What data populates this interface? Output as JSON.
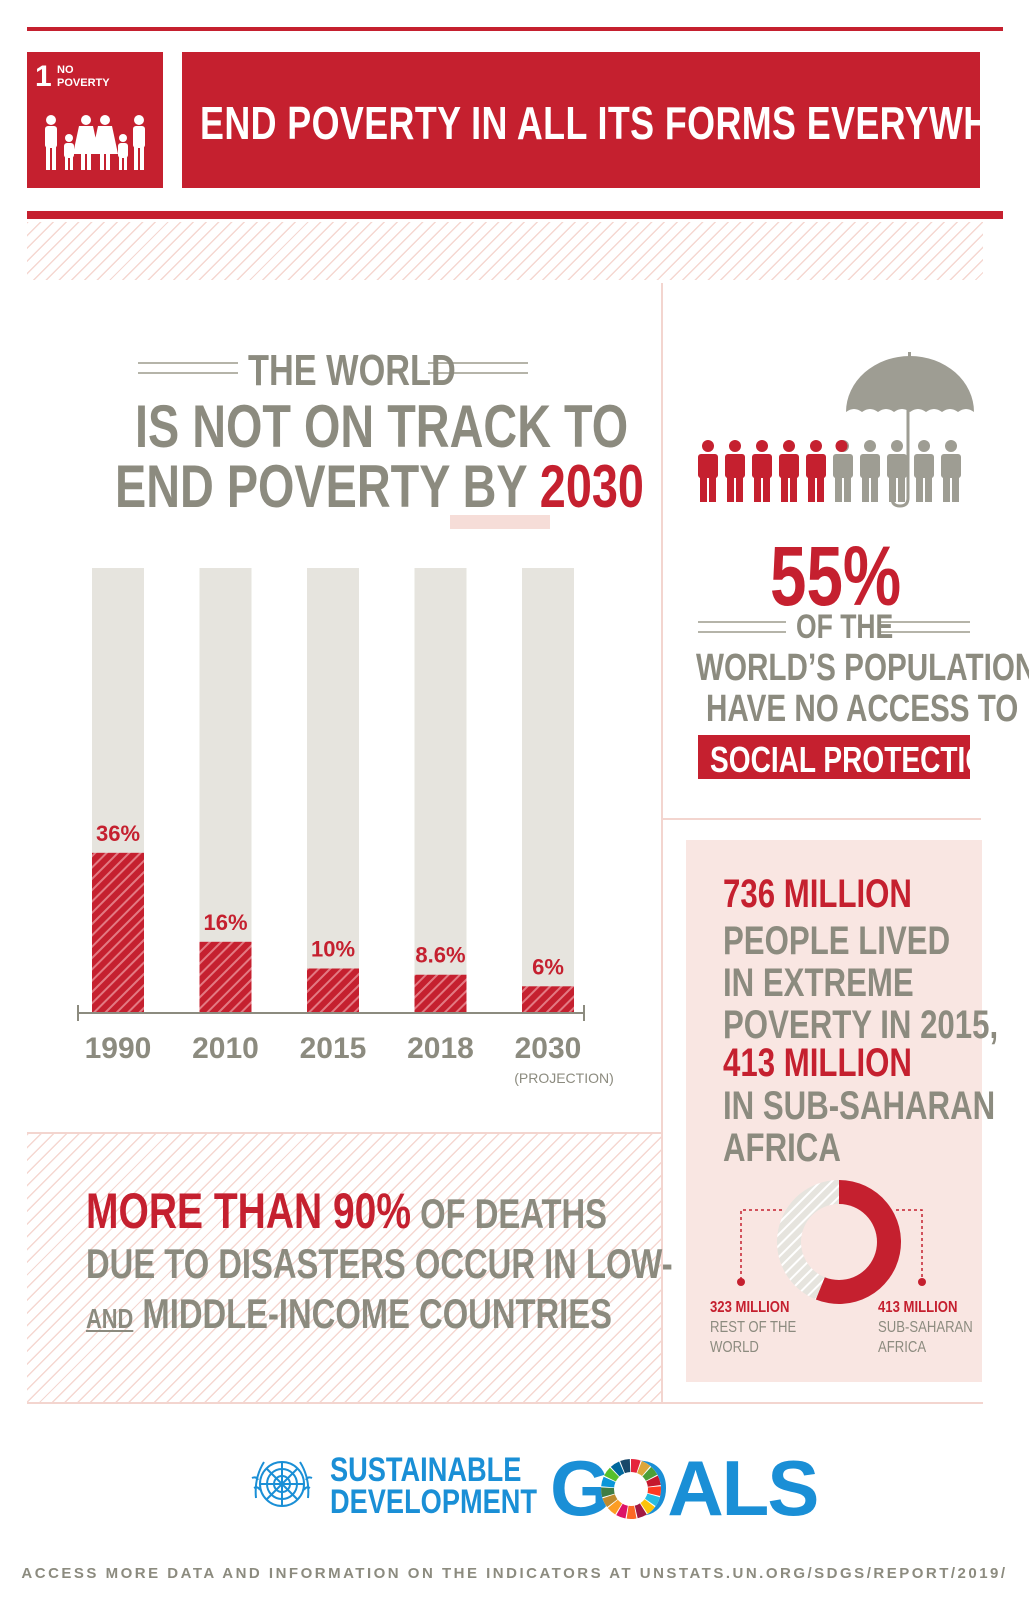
{
  "header": {
    "goal_number": "1",
    "goal_label_line1": "NO",
    "goal_label_line2": "POVERTY",
    "goal_icon": "family-icon",
    "title": "END POVERTY IN ALL ITS FORMS EVERYWHERE"
  },
  "headline": {
    "line1": "THE WORLD",
    "line2": "IS NOT ON TRACK TO",
    "line3_prefix": "END POVERTY BY ",
    "line3_highlight": "2030"
  },
  "chart_data": {
    "type": "bar",
    "categories": [
      "1990",
      "2010",
      "2015",
      "2018",
      "2030"
    ],
    "category_sublabels": [
      "",
      "",
      "",
      "",
      "(PROJECTION)"
    ],
    "values": [
      36,
      16,
      10,
      8.6,
      6
    ],
    "value_labels": [
      "36%",
      "16%",
      "10%",
      "8.6%",
      "6%"
    ],
    "unit": "%",
    "ylim": [
      0,
      100
    ],
    "title": "",
    "xlabel": "",
    "ylabel": "",
    "colors": {
      "fill": "#c5202f",
      "background": "#e6e4de"
    }
  },
  "disasters": {
    "highlight": "MORE THAN 90%",
    "line1_rest": " OF DEATHS",
    "line2": "DUE TO DISASTERS OCCUR IN LOW-",
    "line3_and": "AND",
    "line3_rest": " MIDDLE-INCOME COUNTRIES"
  },
  "social_protection": {
    "icon": "umbrella-people-icon",
    "share_no_access": 55,
    "percent": "55%",
    "line1": "OF THE",
    "line2": "WORLD’S POPULATION",
    "line3": "HAVE NO ACCESS TO",
    "highlight": "SOCIAL PROTECTION"
  },
  "extreme_poverty": {
    "line1": "736 MILLION",
    "line2": "PEOPLE LIVED",
    "line3": "IN EXTREME",
    "line4": "POVERTY IN 2015,",
    "line5": "413 MILLION",
    "line6": "IN SUB-SAHARAN",
    "line7": "AFRICA",
    "donut": {
      "rest_value": 323,
      "ssa_value": 413,
      "rest_amount": "323 MILLION",
      "rest_label_1": "REST OF THE",
      "rest_label_2": "WORLD",
      "ssa_amount": "413 MILLION",
      "ssa_label_1": "SUB-SAHARAN",
      "ssa_label_2": "AFRICA"
    }
  },
  "footer": {
    "emblem": "un-emblem-icon",
    "sdg_line1": "SUSTAINABLE",
    "sdg_line2": "DEVELOPMENT",
    "goals": "GOALS",
    "link_text": "ACCESS MORE DATA AND INFORMATION ON THE INDICATORS AT UNSTATS.UN.ORG/SDGS/REPORT/2019/"
  },
  "colors": {
    "accent": "#c5202f",
    "grey_text": "#8c8b7f",
    "bar_background": "#e6e4de",
    "panel_pink": "#f9e6e2",
    "sdg_blue": "#1a8fd6"
  }
}
